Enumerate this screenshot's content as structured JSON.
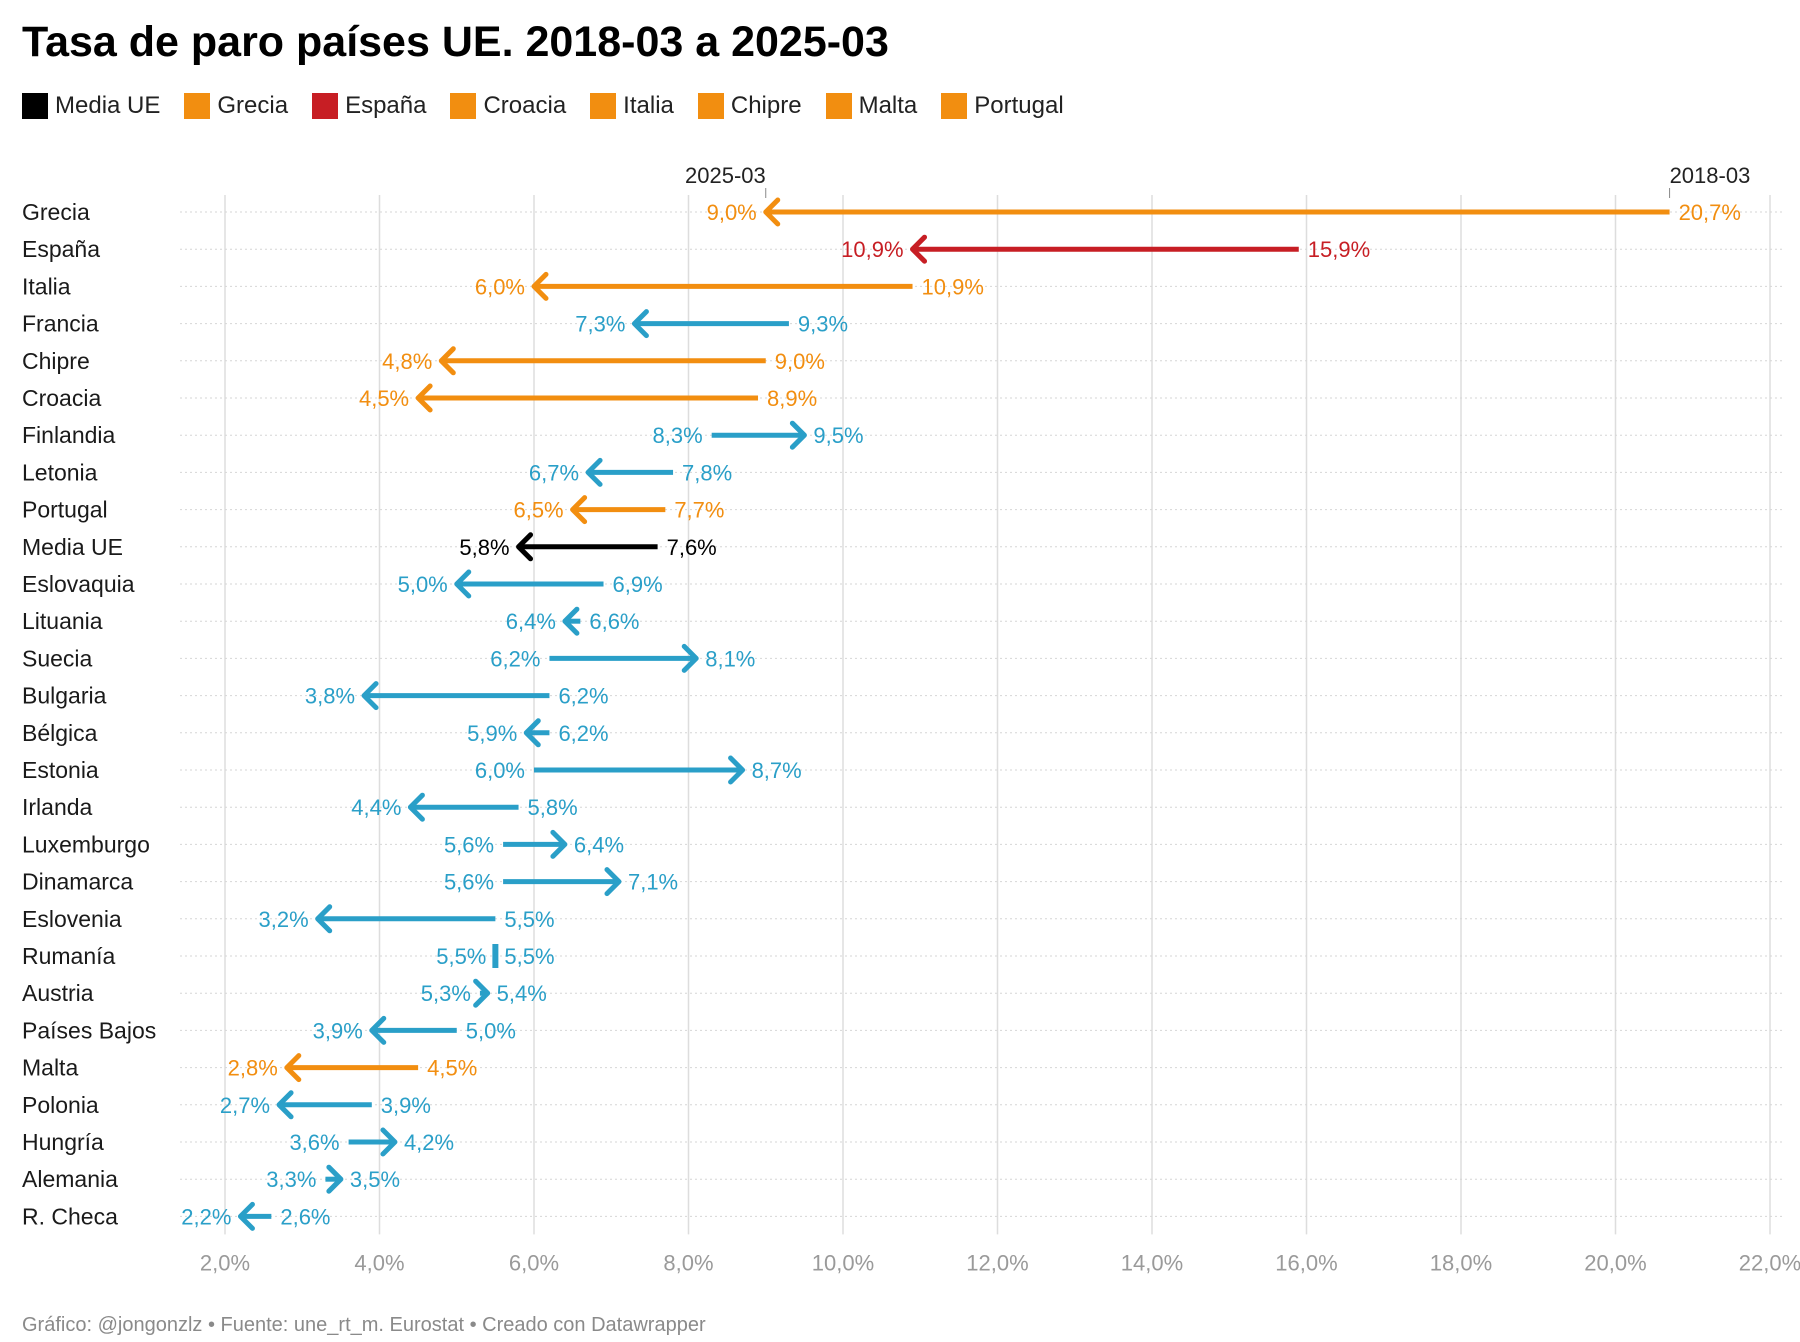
{
  "title": "Tasa de paro países UE. 2018-03 a 2025-03",
  "legend": [
    {
      "label": "Media UE",
      "color": "#000000"
    },
    {
      "label": "Grecia",
      "color": "#f28e10"
    },
    {
      "label": "España",
      "color": "#c71e24"
    },
    {
      "label": "Croacia",
      "color": "#f28e10"
    },
    {
      "label": "Italia",
      "color": "#f28e10"
    },
    {
      "label": "Chipre",
      "color": "#f28e10"
    },
    {
      "label": "Malta",
      "color": "#f28e10"
    },
    {
      "label": "Portugal",
      "color": "#f28e10"
    }
  ],
  "footer": {
    "credit": "Gráfico: @jongonzlz",
    "source": "Fuente: une_rt_m. Eurostat",
    "tool": "Creado con Datawrapper",
    "separator": "•"
  },
  "colors": {
    "default": "#2a9fc8",
    "highlight": "#f28e10",
    "spain": "#c71e24",
    "average": "#000000",
    "grid": "#dddddd",
    "axis_text": "#9a9a9a"
  },
  "chart_data": {
    "type": "arrow",
    "start_label": "2018-03",
    "end_label": "2025-03",
    "xlim": [
      1.5,
      22.0
    ],
    "x_ticks": [
      2,
      4,
      6,
      8,
      10,
      12,
      14,
      16,
      18,
      20,
      22
    ],
    "x_tick_labels": [
      "2,0%",
      "4,0%",
      "6,0%",
      "8,0%",
      "10,0%",
      "12,0%",
      "14,0%",
      "16,0%",
      "18,0%",
      "20,0%",
      "22,0%"
    ],
    "rows": [
      {
        "country": "Grecia",
        "start": 20.7,
        "end": 9.0,
        "start_label": "20,7%",
        "end_label": "9,0%",
        "group": "highlight"
      },
      {
        "country": "España",
        "start": 15.9,
        "end": 10.9,
        "start_label": "15,9%",
        "end_label": "10,9%",
        "group": "spain"
      },
      {
        "country": "Italia",
        "start": 10.9,
        "end": 6.0,
        "start_label": "10,9%",
        "end_label": "6,0%",
        "group": "highlight"
      },
      {
        "country": "Francia",
        "start": 9.3,
        "end": 7.3,
        "start_label": "9,3%",
        "end_label": "7,3%",
        "group": "default"
      },
      {
        "country": "Chipre",
        "start": 9.0,
        "end": 4.8,
        "start_label": "9,0%",
        "end_label": "4,8%",
        "group": "highlight"
      },
      {
        "country": "Croacia",
        "start": 8.9,
        "end": 4.5,
        "start_label": "8,9%",
        "end_label": "4,5%",
        "group": "highlight"
      },
      {
        "country": "Finlandia",
        "start": 8.3,
        "end": 9.5,
        "start_label": "8,3%",
        "end_label": "9,5%",
        "group": "default"
      },
      {
        "country": "Letonia",
        "start": 7.8,
        "end": 6.7,
        "start_label": "7,8%",
        "end_label": "6,7%",
        "group": "default"
      },
      {
        "country": "Portugal",
        "start": 7.7,
        "end": 6.5,
        "start_label": "7,7%",
        "end_label": "6,5%",
        "group": "highlight"
      },
      {
        "country": "Media UE",
        "start": 7.6,
        "end": 5.8,
        "start_label": "7,6%",
        "end_label": "5,8%",
        "group": "average"
      },
      {
        "country": "Eslovaquia",
        "start": 6.9,
        "end": 5.0,
        "start_label": "6,9%",
        "end_label": "5,0%",
        "group": "default"
      },
      {
        "country": "Lituania",
        "start": 6.6,
        "end": 6.4,
        "start_label": "6,6%",
        "end_label": "6,4%",
        "group": "default"
      },
      {
        "country": "Suecia",
        "start": 6.2,
        "end": 8.1,
        "start_label": "6,2%",
        "end_label": "8,1%",
        "group": "default"
      },
      {
        "country": "Bulgaria",
        "start": 6.2,
        "end": 3.8,
        "start_label": "6,2%",
        "end_label": "3,8%",
        "group": "default"
      },
      {
        "country": "Bélgica",
        "start": 6.2,
        "end": 5.9,
        "start_label": "6,2%",
        "end_label": "5,9%",
        "group": "default"
      },
      {
        "country": "Estonia",
        "start": 6.0,
        "end": 8.7,
        "start_label": "6,0%",
        "end_label": "8,7%",
        "group": "default"
      },
      {
        "country": "Irlanda",
        "start": 5.8,
        "end": 4.4,
        "start_label": "5,8%",
        "end_label": "4,4%",
        "group": "default"
      },
      {
        "country": "Luxemburgo",
        "start": 5.6,
        "end": 6.4,
        "start_label": "5,6%",
        "end_label": "6,4%",
        "group": "default"
      },
      {
        "country": "Dinamarca",
        "start": 5.6,
        "end": 7.1,
        "start_label": "5,6%",
        "end_label": "7,1%",
        "group": "default"
      },
      {
        "country": "Eslovenia",
        "start": 5.5,
        "end": 3.2,
        "start_label": "5,5%",
        "end_label": "3,2%",
        "group": "default"
      },
      {
        "country": "Rumanía",
        "start": 5.5,
        "end": 5.5,
        "start_label": "5,5%",
        "end_label": "5,5%",
        "group": "default"
      },
      {
        "country": "Austria",
        "start": 5.3,
        "end": 5.4,
        "start_label": "5,3%",
        "end_label": "5,4%",
        "group": "default"
      },
      {
        "country": "Países Bajos",
        "start": 5.0,
        "end": 3.9,
        "start_label": "5,0%",
        "end_label": "3,9%",
        "group": "default"
      },
      {
        "country": "Malta",
        "start": 4.5,
        "end": 2.8,
        "start_label": "4,5%",
        "end_label": "2,8%",
        "group": "highlight"
      },
      {
        "country": "Polonia",
        "start": 3.9,
        "end": 2.7,
        "start_label": "3,9%",
        "end_label": "2,7%",
        "group": "default"
      },
      {
        "country": "Hungría",
        "start": 3.6,
        "end": 4.2,
        "start_label": "3,6%",
        "end_label": "4,2%",
        "group": "default"
      },
      {
        "country": "Alemania",
        "start": 3.3,
        "end": 3.5,
        "start_label": "3,3%",
        "end_label": "3,5%",
        "group": "default"
      },
      {
        "country": "R. Checa",
        "start": 2.6,
        "end": 2.2,
        "start_label": "2,6%",
        "end_label": "2,2%",
        "group": "default"
      }
    ]
  }
}
